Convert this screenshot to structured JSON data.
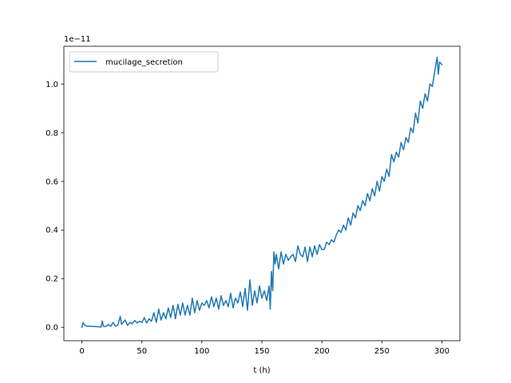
{
  "chart_data": {
    "type": "line",
    "xlabel": "t (h)",
    "ylabel": "",
    "offset_label": "1e−11",
    "y_scale_factor": 1e-11,
    "xlim": [
      -15,
      315
    ],
    "ylim": [
      -0.055,
      1.155
    ],
    "xticks": [
      0,
      50,
      100,
      150,
      200,
      250,
      300
    ],
    "yticks": [
      0.0,
      0.2,
      0.4,
      0.6,
      0.8,
      1.0
    ],
    "ytick_labels": [
      "0.0",
      "0.2",
      "0.4",
      "0.6",
      "0.8",
      "1.0"
    ],
    "legend_position": "upper left",
    "grid": false,
    "series": [
      {
        "name": "mucilage_secretion",
        "color": "#1f77b4",
        "x": [
          0,
          1,
          2,
          4,
          6,
          8,
          10,
          12,
          14,
          16,
          17,
          18,
          20,
          22,
          24,
          26,
          28,
          30,
          32,
          33,
          34,
          36,
          38,
          40,
          42,
          44,
          46,
          48,
          50,
          52,
          54,
          56,
          58,
          60,
          62,
          64,
          66,
          68,
          70,
          72,
          74,
          76,
          78,
          80,
          82,
          84,
          86,
          88,
          90,
          92,
          94,
          96,
          98,
          100,
          102,
          104,
          106,
          108,
          110,
          112,
          114,
          116,
          118,
          120,
          122,
          124,
          126,
          128,
          130,
          132,
          134,
          136,
          138,
          140,
          142,
          144,
          146,
          148,
          150,
          152,
          154,
          156,
          157,
          158,
          159,
          160,
          161,
          162,
          164,
          166,
          168,
          170,
          172,
          174,
          176,
          178,
          180,
          182,
          184,
          186,
          188,
          190,
          192,
          194,
          196,
          198,
          200,
          202,
          204,
          206,
          208,
          210,
          212,
          214,
          216,
          218,
          220,
          222,
          224,
          226,
          228,
          230,
          232,
          234,
          236,
          238,
          240,
          242,
          244,
          246,
          248,
          250,
          252,
          254,
          256,
          258,
          260,
          262,
          264,
          266,
          268,
          270,
          272,
          274,
          276,
          278,
          280,
          282,
          284,
          286,
          288,
          290,
          292,
          294,
          296,
          297,
          298,
          300
        ],
        "y": [
          0.0,
          0.02,
          0.01,
          0.005,
          0.005,
          0.004,
          0.003,
          0.003,
          0.002,
          0.001,
          0.026,
          0.004,
          0.003,
          0.012,
          0.004,
          0.02,
          0.004,
          0.01,
          0.045,
          0.012,
          0.018,
          0.03,
          0.008,
          0.02,
          0.015,
          0.028,
          0.018,
          0.025,
          0.02,
          0.04,
          0.018,
          0.035,
          0.025,
          0.06,
          0.02,
          0.075,
          0.03,
          0.06,
          0.035,
          0.08,
          0.04,
          0.09,
          0.035,
          0.095,
          0.05,
          0.1,
          0.05,
          0.09,
          0.05,
          0.12,
          0.06,
          0.11,
          0.07,
          0.1,
          0.09,
          0.11,
          0.08,
          0.125,
          0.085,
          0.12,
          0.075,
          0.13,
          0.09,
          0.11,
          0.085,
          0.14,
          0.08,
          0.12,
          0.1,
          0.145,
          0.085,
          0.16,
          0.07,
          0.195,
          0.09,
          0.15,
          0.1,
          0.17,
          0.12,
          0.15,
          0.11,
          0.17,
          0.075,
          0.23,
          0.15,
          0.31,
          0.26,
          0.3,
          0.24,
          0.31,
          0.26,
          0.3,
          0.275,
          0.29,
          0.3,
          0.27,
          0.335,
          0.3,
          0.29,
          0.33,
          0.27,
          0.33,
          0.29,
          0.335,
          0.3,
          0.34,
          0.32,
          0.32,
          0.35,
          0.34,
          0.36,
          0.35,
          0.38,
          0.4,
          0.39,
          0.42,
          0.4,
          0.45,
          0.42,
          0.47,
          0.45,
          0.5,
          0.48,
          0.52,
          0.5,
          0.55,
          0.52,
          0.57,
          0.54,
          0.6,
          0.56,
          0.62,
          0.6,
          0.65,
          0.62,
          0.71,
          0.68,
          0.72,
          0.7,
          0.76,
          0.73,
          0.78,
          0.76,
          0.82,
          0.8,
          0.88,
          0.84,
          0.93,
          0.9,
          0.96,
          0.93,
          1.0,
          0.99,
          1.05,
          1.11,
          1.04,
          1.09,
          1.08
        ]
      }
    ]
  }
}
